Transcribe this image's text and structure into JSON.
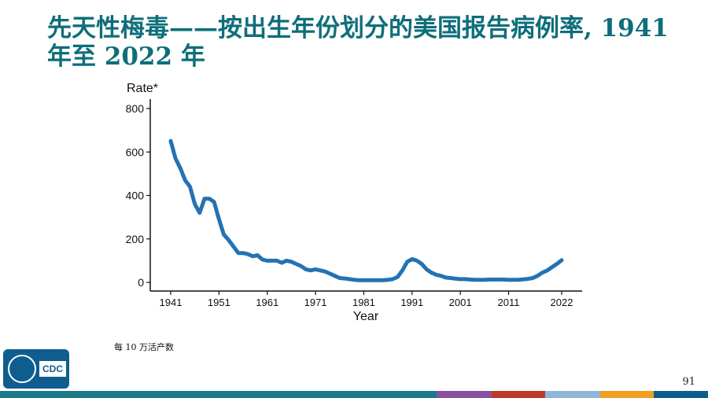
{
  "slide": {
    "title": "先天性梅毒——按出生年份划分的美国报告病例率, 1941 年至 2022 年",
    "footnote": "每 10 万活产数",
    "page_number": "91",
    "logo_text": "CDC",
    "bottom_bar_colors": [
      "#1a7a8a",
      "#8a4f9e",
      "#c0392b",
      "#e07a30",
      "#8fb8d8",
      "#f0a020",
      "#0f5d8f"
    ]
  },
  "chart_data": {
    "type": "line",
    "ylabel": "Rate*",
    "xlabel": "Year",
    "xlim": [
      1941,
      2022
    ],
    "ylim": [
      0,
      800
    ],
    "x_ticks": [
      1941,
      1951,
      1961,
      1971,
      1981,
      1991,
      2001,
      2011,
      2022
    ],
    "y_ticks": [
      0,
      200,
      400,
      600,
      800
    ],
    "grid": false,
    "line_color": "#2472b3",
    "series": [
      {
        "name": "",
        "x": [
          1941,
          1942,
          1943,
          1944,
          1945,
          1946,
          1947,
          1948,
          1949,
          1950,
          1951,
          1952,
          1953,
          1954,
          1955,
          1956,
          1957,
          1958,
          1959,
          1960,
          1961,
          1962,
          1963,
          1964,
          1965,
          1966,
          1967,
          1968,
          1969,
          1970,
          1971,
          1972,
          1973,
          1974,
          1975,
          1976,
          1977,
          1978,
          1979,
          1980,
          1981,
          1982,
          1983,
          1984,
          1985,
          1986,
          1987,
          1988,
          1989,
          1990,
          1991,
          1992,
          1993,
          1994,
          1995,
          1996,
          1997,
          1998,
          1999,
          2000,
          2001,
          2002,
          2003,
          2004,
          2005,
          2006,
          2007,
          2008,
          2009,
          2010,
          2011,
          2012,
          2013,
          2014,
          2015,
          2016,
          2017,
          2018,
          2019,
          2020,
          2021,
          2022
        ],
        "y": [
          651,
          570,
          525,
          470,
          440,
          360,
          320,
          385,
          385,
          370,
          290,
          220,
          195,
          165,
          135,
          135,
          130,
          120,
          125,
          105,
          100,
          100,
          100,
          90,
          100,
          95,
          85,
          75,
          60,
          55,
          60,
          55,
          50,
          40,
          30,
          20,
          18,
          15,
          12,
          10,
          10,
          10,
          10,
          10,
          10,
          12,
          15,
          25,
          55,
          95,
          107,
          100,
          85,
          60,
          45,
          35,
          30,
          22,
          20,
          17,
          15,
          15,
          13,
          12,
          12,
          12,
          13,
          13,
          13,
          13,
          12,
          12,
          12,
          14,
          16,
          20,
          30,
          45,
          55,
          70,
          85,
          102
        ]
      }
    ]
  }
}
